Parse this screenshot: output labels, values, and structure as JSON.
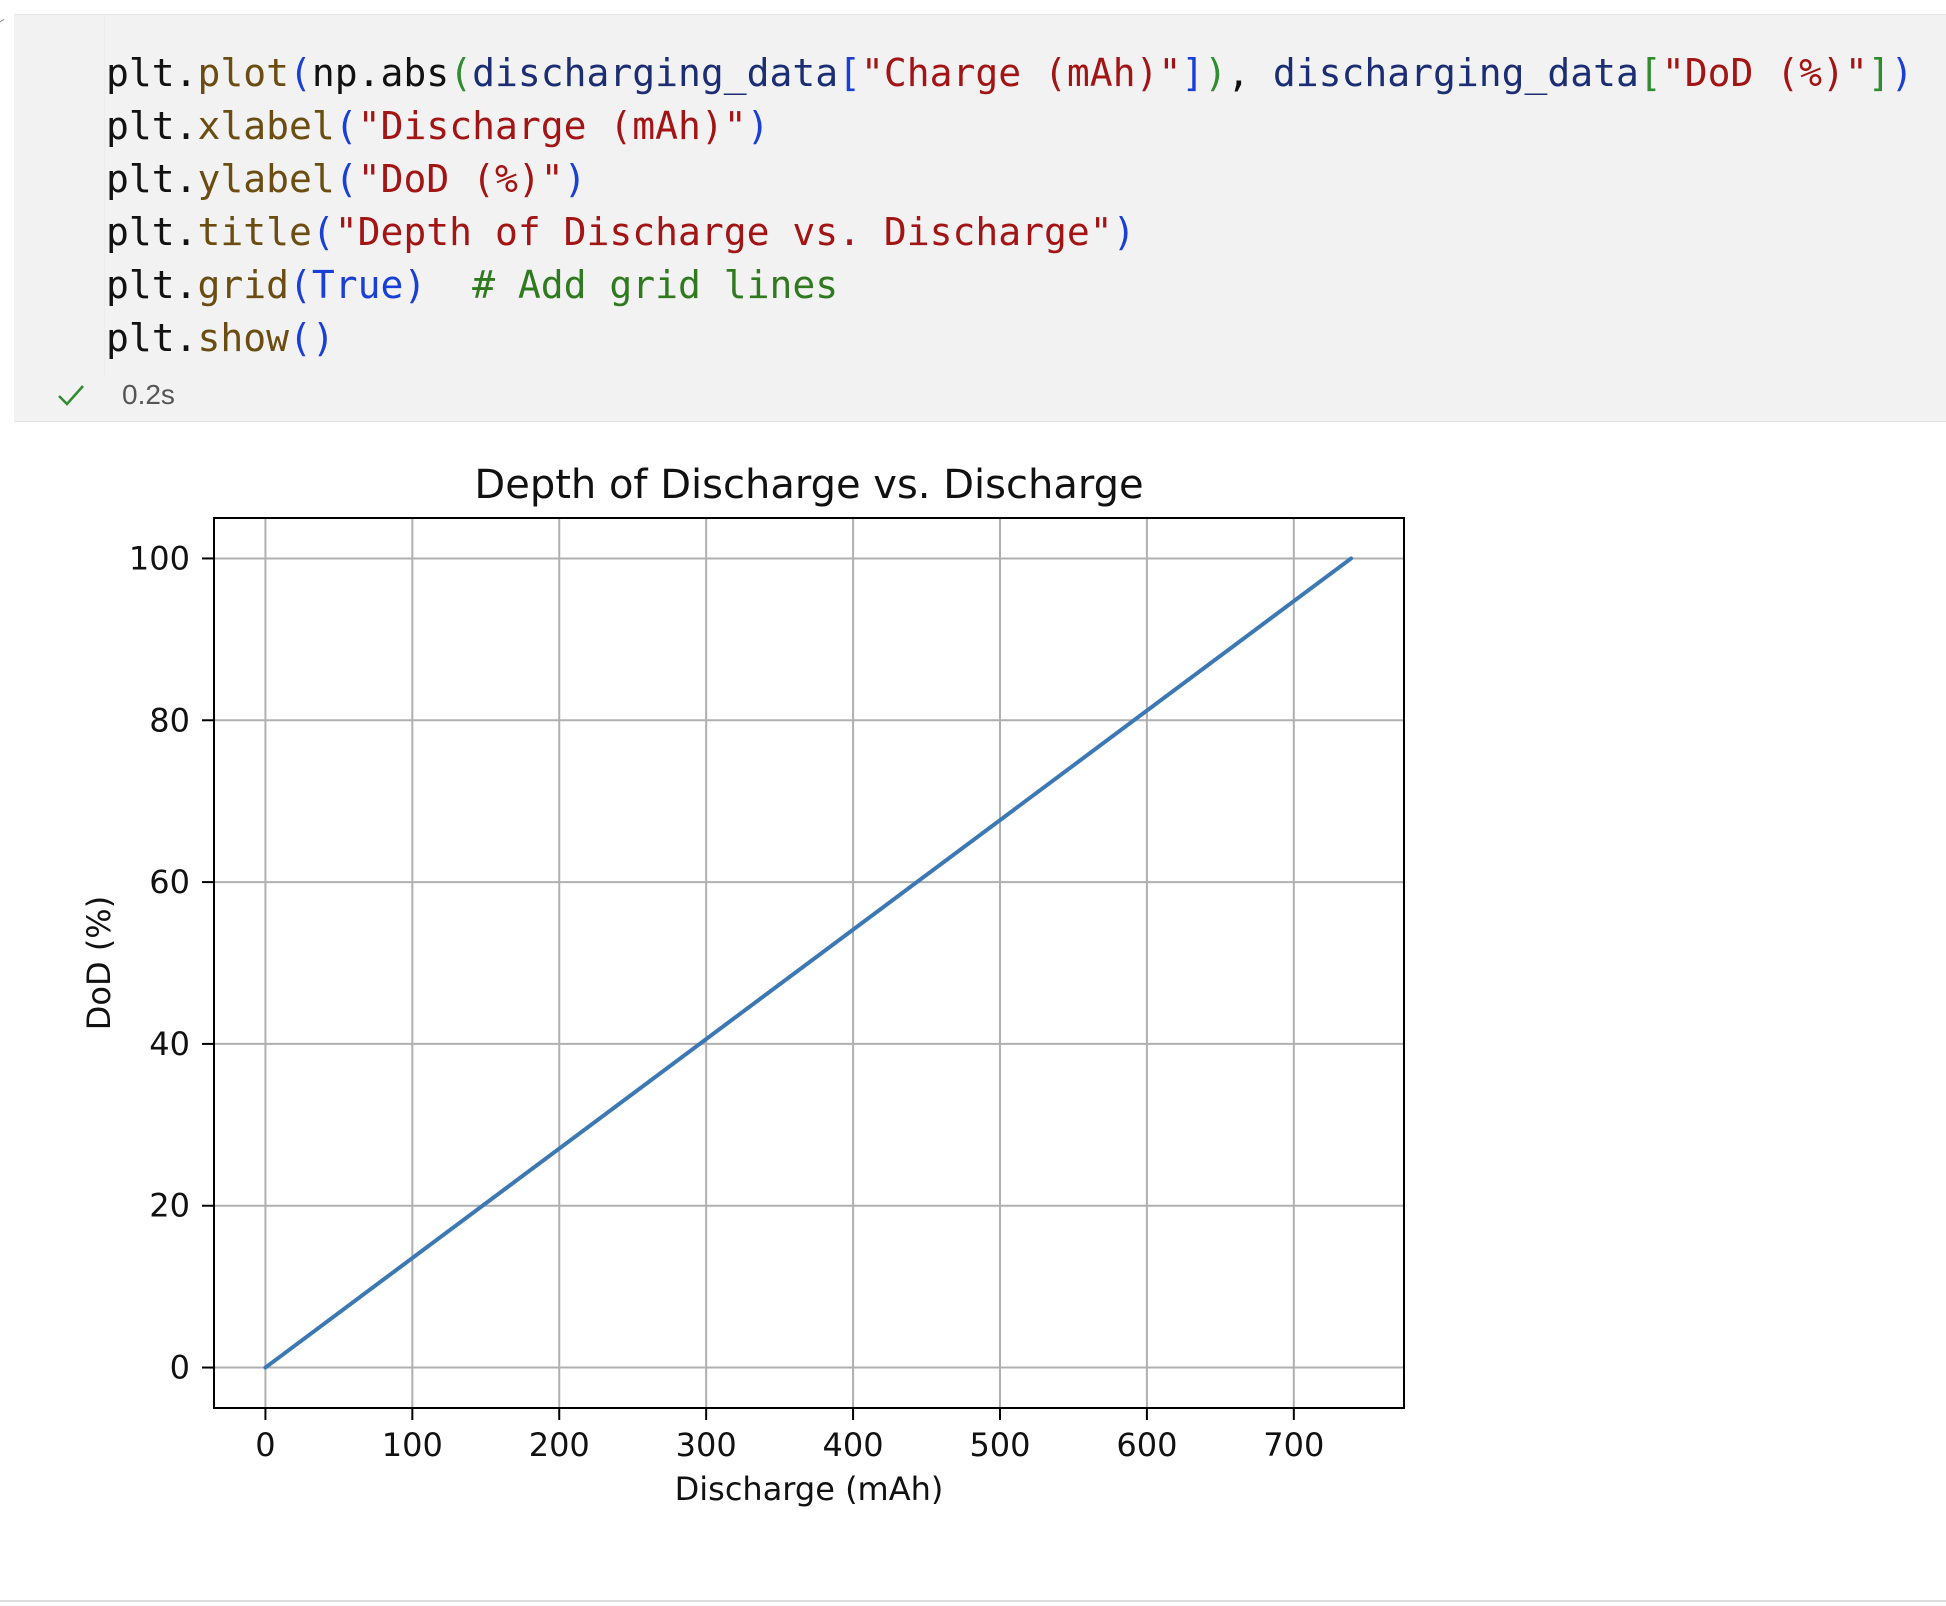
{
  "cell": {
    "code_lines": [
      [
        {
          "t": "plt.",
          "c": "#111111"
        },
        {
          "t": "plot",
          "c": "#6b4d12"
        },
        {
          "t": "(",
          "c": "#1a3fd6"
        },
        {
          "t": "np.abs",
          "c": "#111111"
        },
        {
          "t": "(",
          "c": "#2f8c2f"
        },
        {
          "t": "discharging_data",
          "c": "#1b2d73"
        },
        {
          "t": "[",
          "c": "#1a3fd6"
        },
        {
          "t": "\"Charge (mAh)\"",
          "c": "#a31515"
        },
        {
          "t": "]",
          "c": "#1a3fd6"
        },
        {
          "t": ")",
          "c": "#2f8c2f"
        },
        {
          "t": ", ",
          "c": "#111111"
        },
        {
          "t": "discharging_data",
          "c": "#1b2d73"
        },
        {
          "t": "[",
          "c": "#2f8c2f"
        },
        {
          "t": "\"DoD (%)\"",
          "c": "#a31515"
        },
        {
          "t": "]",
          "c": "#2f8c2f"
        },
        {
          "t": ")",
          "c": "#1a3fd6"
        }
      ],
      [
        {
          "t": "plt.",
          "c": "#111111"
        },
        {
          "t": "xlabel",
          "c": "#6b4d12"
        },
        {
          "t": "(",
          "c": "#1a3fd6"
        },
        {
          "t": "\"Discharge (mAh)\"",
          "c": "#a31515"
        },
        {
          "t": ")",
          "c": "#1a3fd6"
        }
      ],
      [
        {
          "t": "plt.",
          "c": "#111111"
        },
        {
          "t": "ylabel",
          "c": "#6b4d12"
        },
        {
          "t": "(",
          "c": "#1a3fd6"
        },
        {
          "t": "\"DoD (%)\"",
          "c": "#a31515"
        },
        {
          "t": ")",
          "c": "#1a3fd6"
        }
      ],
      [
        {
          "t": "plt.",
          "c": "#111111"
        },
        {
          "t": "title",
          "c": "#6b4d12"
        },
        {
          "t": "(",
          "c": "#1a3fd6"
        },
        {
          "t": "\"Depth of Discharge vs. Discharge\"",
          "c": "#a31515"
        },
        {
          "t": ")",
          "c": "#1a3fd6"
        }
      ],
      [
        {
          "t": "plt.",
          "c": "#111111"
        },
        {
          "t": "grid",
          "c": "#6b4d12"
        },
        {
          "t": "(",
          "c": "#1a3fd6"
        },
        {
          "t": "True",
          "c": "#1a3fd6"
        },
        {
          "t": ")",
          "c": "#1a3fd6"
        },
        {
          "t": "  ",
          "c": "#111111"
        },
        {
          "t": "# Add grid lines",
          "c": "#2f7a1f"
        }
      ],
      [
        {
          "t": "plt.",
          "c": "#111111"
        },
        {
          "t": "show",
          "c": "#6b4d12"
        },
        {
          "t": "()",
          "c": "#1a3fd6"
        }
      ]
    ],
    "status_icon": "checkmark-icon",
    "status_color": "#2f8c2f",
    "exec_time": "0.2s"
  },
  "chart_data": {
    "type": "line",
    "title": "Depth of Discharge vs. Discharge",
    "xlabel": "Discharge (mAh)",
    "ylabel": "DoD (%)",
    "xlim": [
      -35,
      775
    ],
    "ylim": [
      -5,
      105
    ],
    "xticks": [
      0,
      100,
      200,
      300,
      400,
      500,
      600,
      700
    ],
    "yticks": [
      0,
      20,
      40,
      60,
      80,
      100
    ],
    "grid": true,
    "series": [
      {
        "color": "#3b78b4",
        "x": [
          0,
          739
        ],
        "y": [
          0,
          100
        ]
      }
    ]
  }
}
